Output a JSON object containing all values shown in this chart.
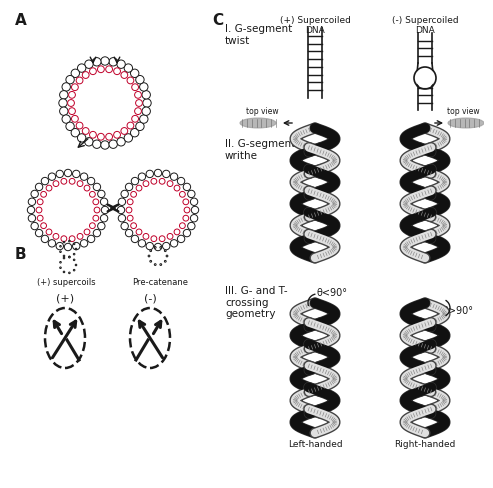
{
  "bg_color": "#ffffff",
  "black": "#1a1a1a",
  "red": "#c0002a",
  "gray": "#888888",
  "section_A": "A",
  "section_B": "B",
  "section_C": "C",
  "label_plus_supercoils": "(+) supercoils",
  "label_pre_catenane": "Pre-catenane",
  "label_plus": "(+)",
  "label_minus": "(-)",
  "label_I": "I. G-segment\ntwist",
  "label_II": "II. G-segment\nwrithe",
  "label_III": "III. G- and T-\ncrossing\ngeometry",
  "label_plus_super": "(+) Supercoiled\nDNA",
  "label_minus_super": "(-) Supercoiled\nDNA",
  "label_left_handed": "Left-handed",
  "label_right_handed": "Right-handed",
  "label_top_view": "top view",
  "label_theta_lt": "θ<90°",
  "label_theta_gt": "θ>90°"
}
